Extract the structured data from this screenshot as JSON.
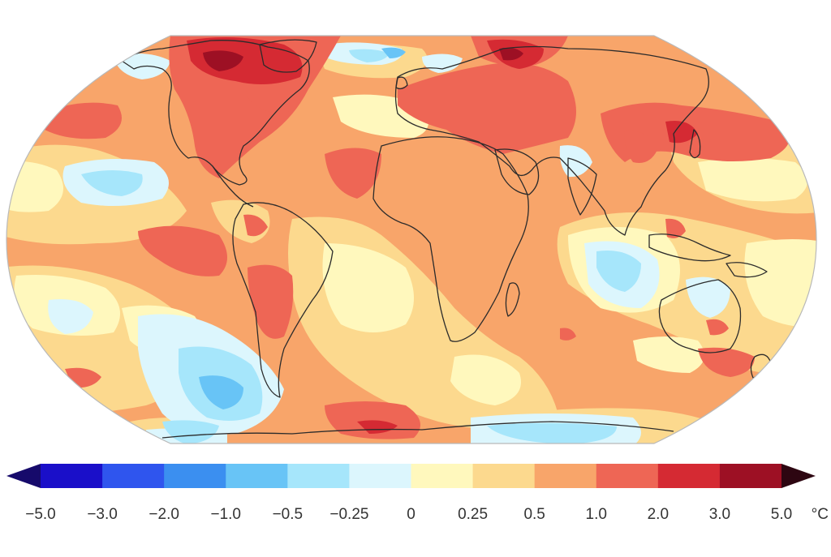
{
  "map": {
    "projection": "robinson-like",
    "anomaly_palette_note_free": true
  },
  "legend": {
    "unit": "°C",
    "ticks": [
      "−5.0",
      "−3.0",
      "−2.0",
      "−1.0",
      "−0.5",
      "−0.25",
      "0",
      "0.25",
      "0.5",
      "1.0",
      "2.0",
      "3.0",
      "5.0"
    ],
    "colors": [
      "#1a0fc9",
      "#2f55ee",
      "#3b8ff0",
      "#68c4f6",
      "#a6e6fb",
      "#dcf6fd",
      "#fff8bd",
      "#fcd98e",
      "#f8a56a",
      "#ee6655",
      "#d52a33",
      "#9d1024"
    ],
    "low_cap_color": "#160a6b",
    "high_cap_color": "#2d0611"
  },
  "colors": {
    "ocean_base": "#f8a56a",
    "outline": "#2b2b2b",
    "frame": "#b9b9b9"
  }
}
